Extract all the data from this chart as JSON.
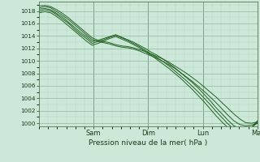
{
  "background_color": "#cce8d8",
  "plot_bg_color": "#cce8d8",
  "grid_color_minor": "#b0d4c0",
  "grid_color_major": "#90b8a0",
  "line_color": "#1a5c1a",
  "xlabel_text": "Pression niveau de la mer( hPa )",
  "x_tick_labels": [
    "Sam",
    "Dim",
    "Lun",
    "Mar"
  ],
  "ylim": [
    999.5,
    1019.5
  ],
  "yticks": [
    1000,
    1002,
    1004,
    1006,
    1008,
    1010,
    1012,
    1014,
    1016,
    1018
  ],
  "xlim": [
    0,
    4.0
  ],
  "series": [
    [
      1018.8,
      1018.9,
      1018.7,
      1018.2,
      1017.6,
      1016.9,
      1016.1,
      1015.3,
      1014.5,
      1013.7,
      1013.3,
      1013.1,
      1012.9,
      1012.6,
      1012.4,
      1012.3,
      1012.1,
      1011.8,
      1011.5,
      1011.1,
      1010.7,
      1010.3,
      1009.8,
      1009.2,
      1008.6,
      1008.0,
      1007.3,
      1006.6,
      1005.8,
      1005.0,
      1004.2,
      1003.3,
      1002.4,
      1001.5,
      1000.7,
      1000.1,
      1000.0,
      1000.2
    ],
    [
      1018.5,
      1018.7,
      1018.5,
      1017.9,
      1017.3,
      1016.6,
      1015.8,
      1015.0,
      1014.2,
      1013.4,
      1013.1,
      1012.9,
      1012.7,
      1012.4,
      1012.2,
      1012.1,
      1011.9,
      1011.6,
      1011.2,
      1010.8,
      1010.4,
      1009.9,
      1009.4,
      1008.8,
      1008.1,
      1007.4,
      1006.7,
      1005.9,
      1005.1,
      1004.2,
      1003.3,
      1002.3,
      1001.3,
      1000.4,
      999.8,
      999.6,
      999.7,
      1000.0
    ],
    [
      1018.3,
      1018.4,
      1018.2,
      1017.6,
      1017.0,
      1016.2,
      1015.4,
      1014.6,
      1013.9,
      1013.1,
      1013.3,
      1013.6,
      1013.9,
      1014.2,
      1013.8,
      1013.4,
      1013.0,
      1012.5,
      1012.0,
      1011.4,
      1010.9,
      1010.3,
      1009.6,
      1008.9,
      1008.1,
      1007.3,
      1006.5,
      1005.6,
      1004.6,
      1003.6,
      1002.5,
      1001.5,
      1000.5,
      999.6,
      999.2,
      999.1,
      999.4,
      1000.0
    ],
    [
      1018.0,
      1018.2,
      1018.0,
      1017.4,
      1016.7,
      1016.0,
      1015.1,
      1014.3,
      1013.6,
      1012.8,
      1013.1,
      1013.4,
      1013.8,
      1014.1,
      1013.7,
      1013.3,
      1012.8,
      1012.3,
      1011.7,
      1011.1,
      1010.5,
      1009.9,
      1009.2,
      1008.4,
      1007.6,
      1006.8,
      1005.9,
      1005.0,
      1004.0,
      1003.0,
      1001.9,
      1000.9,
      999.9,
      999.1,
      998.8,
      998.9,
      999.3,
      1000.2
    ],
    [
      1017.7,
      1017.9,
      1017.7,
      1017.1,
      1016.4,
      1015.6,
      1014.8,
      1014.0,
      1013.2,
      1012.5,
      1012.8,
      1013.2,
      1013.6,
      1013.9,
      1013.5,
      1013.1,
      1012.6,
      1012.1,
      1011.5,
      1010.9,
      1010.2,
      1009.5,
      1008.8,
      1008.0,
      1007.2,
      1006.3,
      1005.4,
      1004.4,
      1003.4,
      1002.3,
      1001.2,
      1000.2,
      999.3,
      998.7,
      998.5,
      998.7,
      999.2,
      1000.4
    ]
  ]
}
